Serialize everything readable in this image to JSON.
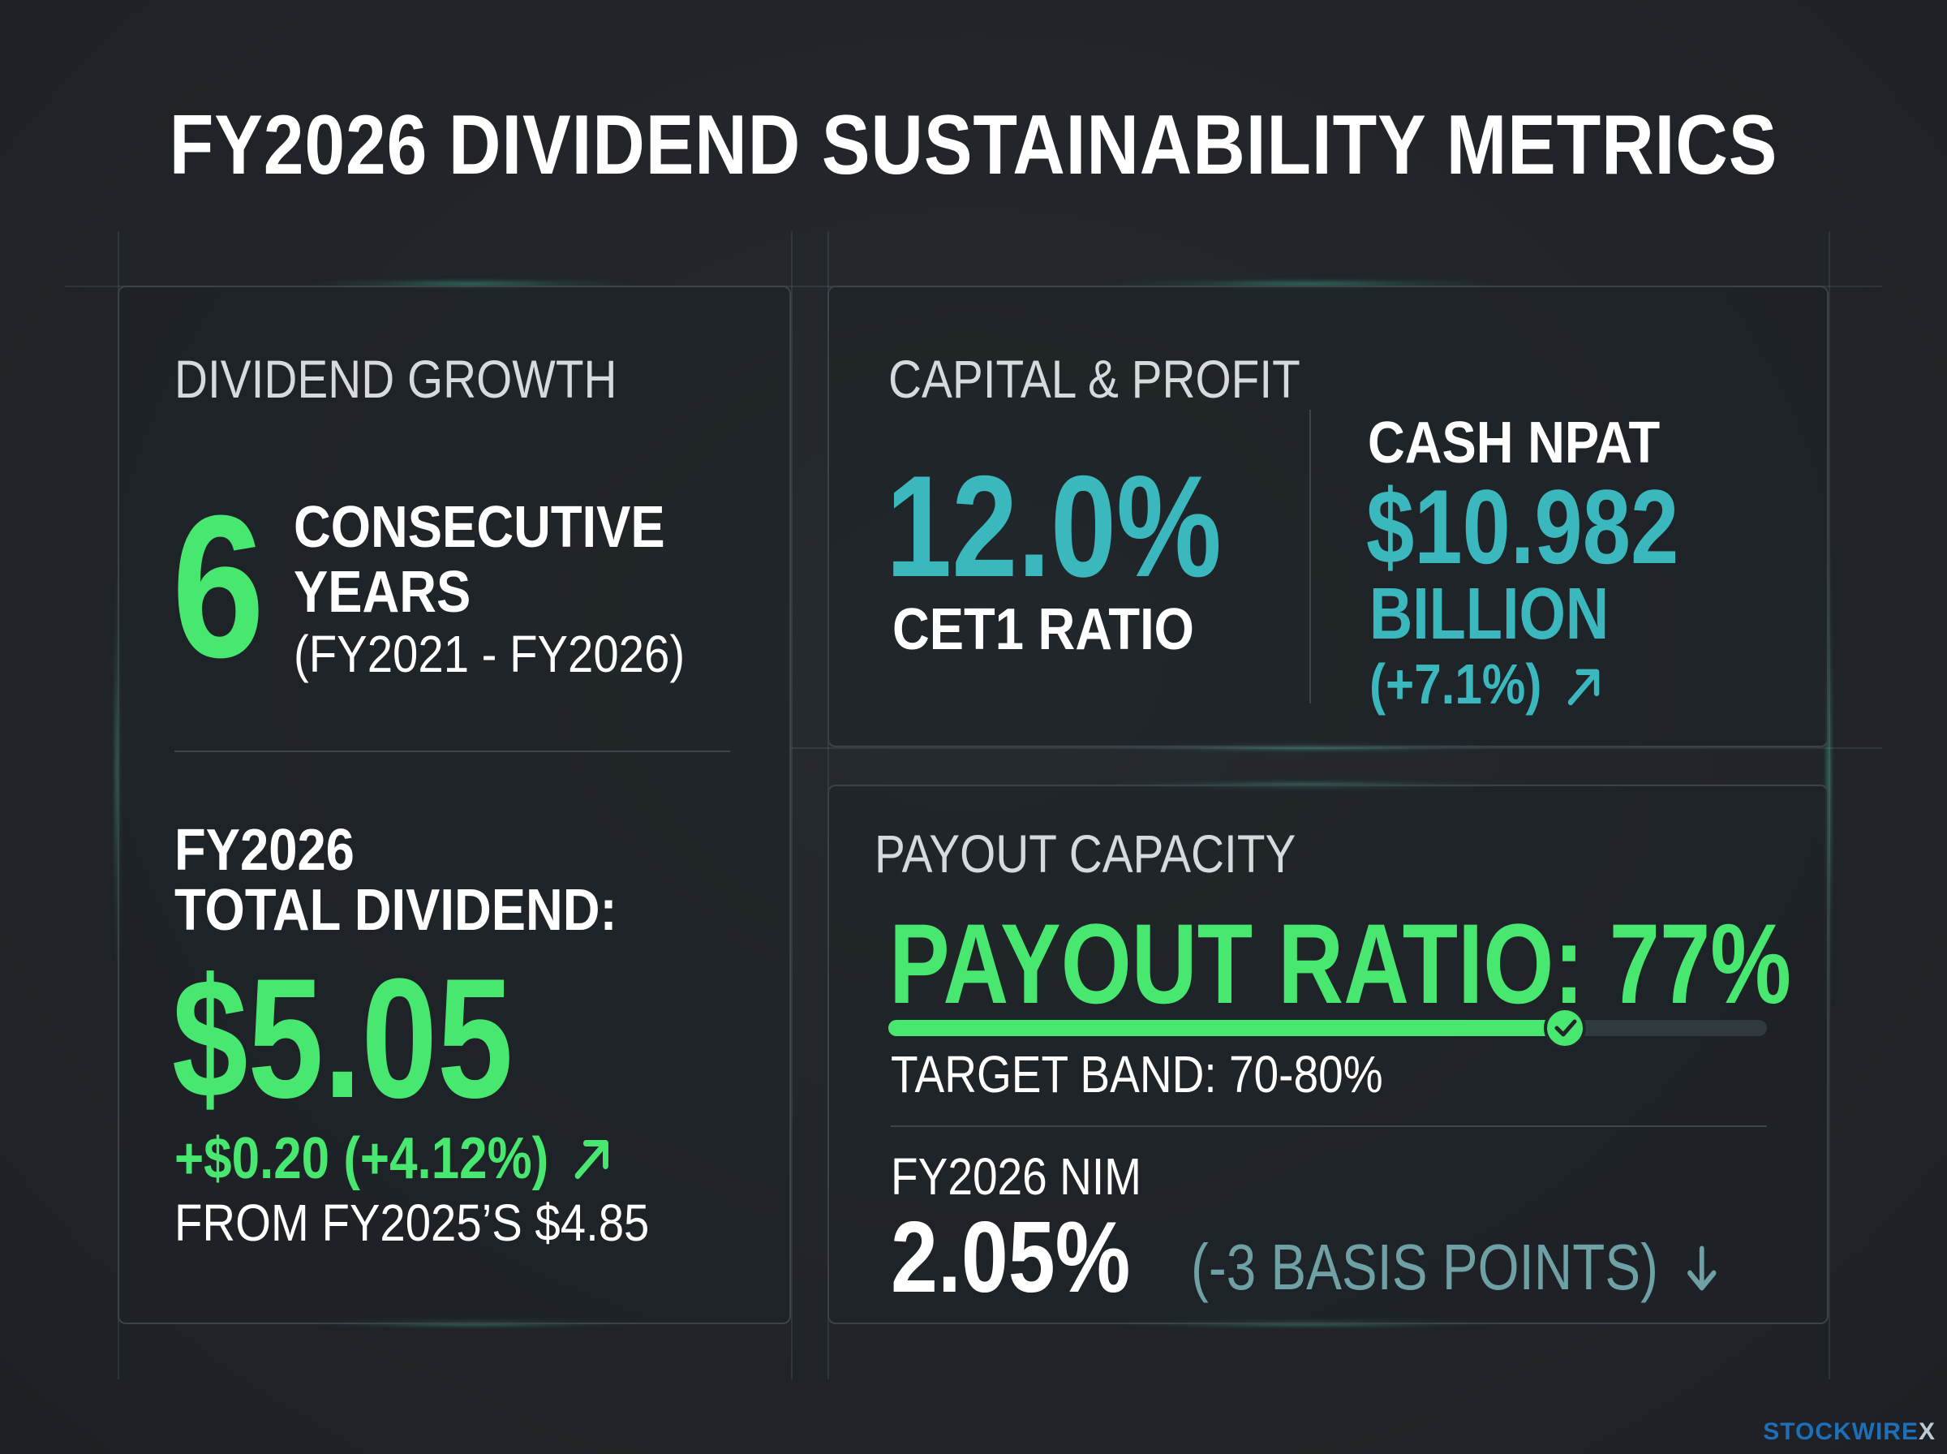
{
  "title": "FY2026 DIVIDEND SUSTAINABILITY METRICS",
  "dividend_growth": {
    "label": "DIVIDEND GROWTH",
    "years_number": "6",
    "years_line1": "CONSECUTIVE",
    "years_line2": "YEARS",
    "years_range": "(FY2021 - FY2026)",
    "total_label_line1": "FY2026",
    "total_label_line2": "TOTAL DIVIDEND:",
    "total_value": "$5.05",
    "change": "+$0.20 (+4.12%)",
    "from": "FROM FY2025’S $4.85"
  },
  "capital_profit": {
    "label": "CAPITAL & PROFIT",
    "cet1_value": "12.0%",
    "cet1_label": "CET1 RATIO",
    "npat_label": "CASH NPAT",
    "npat_value": "$10.982",
    "npat_unit": "BILLION",
    "npat_change": "(+7.1%)"
  },
  "payout_capacity": {
    "label": "PAYOUT CAPACITY",
    "payout_ratio_text": "PAYOUT RATIO: 77%",
    "payout_ratio": 0.77,
    "target_band": "TARGET BAND: 70-80%",
    "nim_label": "FY2026 NIM",
    "nim_value": "2.05%",
    "nim_change": "(-3 BASIS POINTS)"
  },
  "colors": {
    "green": "#48e870",
    "teal": "#3bb8bd",
    "background": "#22262b"
  },
  "icons": {
    "up": "arrow-up-right-icon",
    "down": "arrow-down-icon",
    "check": "check-icon"
  },
  "branding": {
    "logo_text": "STOCKWIRE",
    "logo_mark": "X"
  }
}
